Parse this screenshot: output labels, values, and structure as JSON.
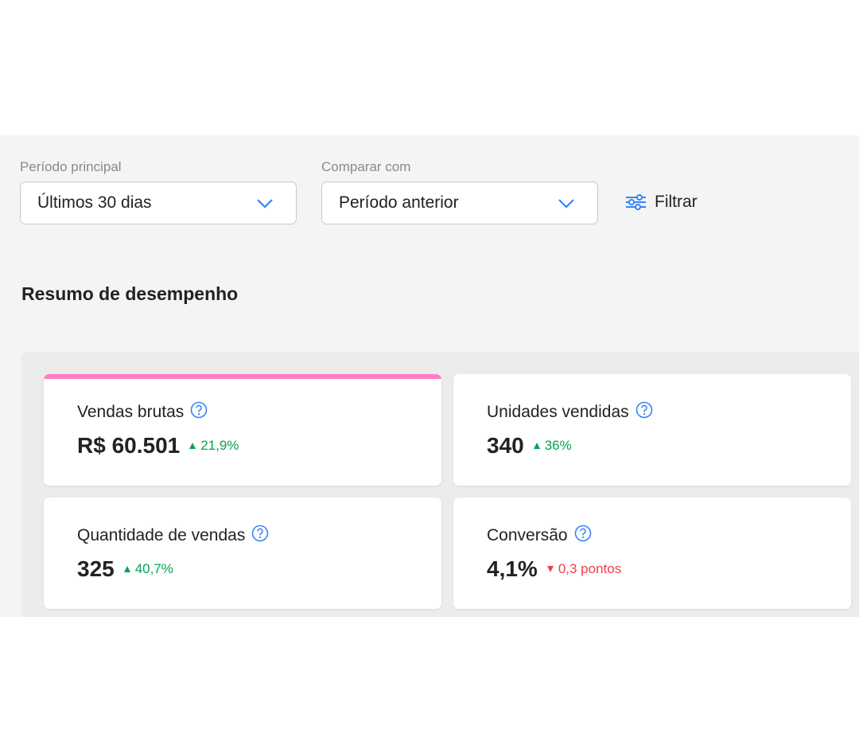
{
  "filters": [
    {
      "label": "Período principal",
      "value": "Últimos 30 dias"
    },
    {
      "label": "Comparar com",
      "value": "Período anterior"
    }
  ],
  "filter_button": "Filtrar",
  "section_title": "Resumo de desempenho",
  "metrics": [
    {
      "name": "Vendas brutas",
      "value": "R$ 60.501",
      "change": "21,9%",
      "trend": "up"
    },
    {
      "name": "Unidades vendidas",
      "value": "340",
      "change": "36%",
      "trend": "up"
    },
    {
      "name": "Quantidade de vendas",
      "value": "325",
      "change": "40,7%",
      "trend": "up"
    },
    {
      "name": "Conversão",
      "value": "4,1%",
      "change": "0,3 pontos",
      "trend": "down"
    }
  ]
}
